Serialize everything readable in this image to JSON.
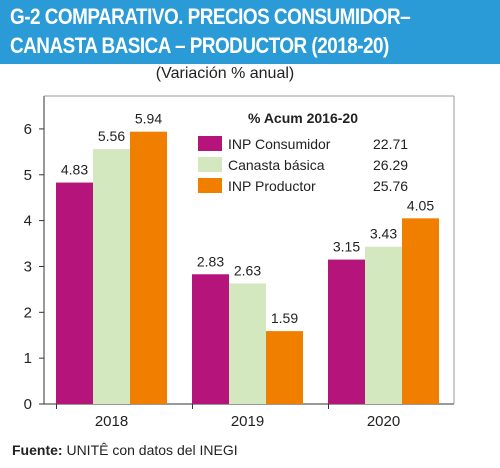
{
  "header": {
    "title_line1": "G-2 COMPARATIVO. PRECIOS CONSUMIDOR–",
    "title_line2": "CANASTA BASICA – PRODUCTOR (2018-20)",
    "subtitle": "(Variación % anual)"
  },
  "source": {
    "label": "Fuente:",
    "text": "UNITÊ con datos del INEGI"
  },
  "colors": {
    "header_bg": "#2a9bd6",
    "inp_consumidor": "#b5147a",
    "canasta_basica": "#d4e8c0",
    "inp_productor": "#f07f00"
  },
  "chart_data": {
    "type": "bar",
    "categories": [
      "2018",
      "2019",
      "2020"
    ],
    "series": [
      {
        "name": "INP Consumidor",
        "values": [
          4.83,
          2.83,
          3.15
        ],
        "color": "#b5147a"
      },
      {
        "name": "Canasta básica",
        "values": [
          5.56,
          2.63,
          3.43
        ],
        "color": "#d4e8c0"
      },
      {
        "name": "INP Productor",
        "values": [
          5.94,
          1.59,
          4.05
        ],
        "color": "#f07f00"
      }
    ],
    "value_labels": [
      [
        "4.83",
        "2.83",
        "3.15"
      ],
      [
        "5.56",
        "2.63",
        "3.43"
      ],
      [
        "5.94",
        "1.59",
        "4.05"
      ]
    ],
    "yticks": [
      "0",
      "1",
      "2",
      "3",
      "4",
      "5",
      "6"
    ],
    "ylim": [
      0,
      6.5
    ],
    "legend": {
      "title": "% Acum 2016-20",
      "position": "top-right",
      "entries": [
        {
          "label": "INP Consumidor",
          "value": "22.71"
        },
        {
          "label": "Canasta básica",
          "value": "26.29"
        },
        {
          "label": "INP Productor",
          "value": "25.76"
        }
      ]
    },
    "grid": false
  }
}
